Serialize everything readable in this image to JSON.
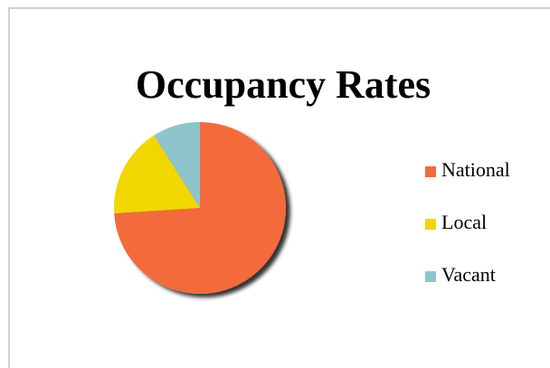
{
  "chart_data": {
    "type": "pie",
    "title": "Occupancy Rates",
    "categories": [
      "National",
      "Local",
      "Vacant"
    ],
    "values": [
      74,
      17,
      9
    ],
    "colors": [
      "#f36a3b",
      "#f2d600",
      "#8ec4cb"
    ],
    "legend": "right"
  }
}
